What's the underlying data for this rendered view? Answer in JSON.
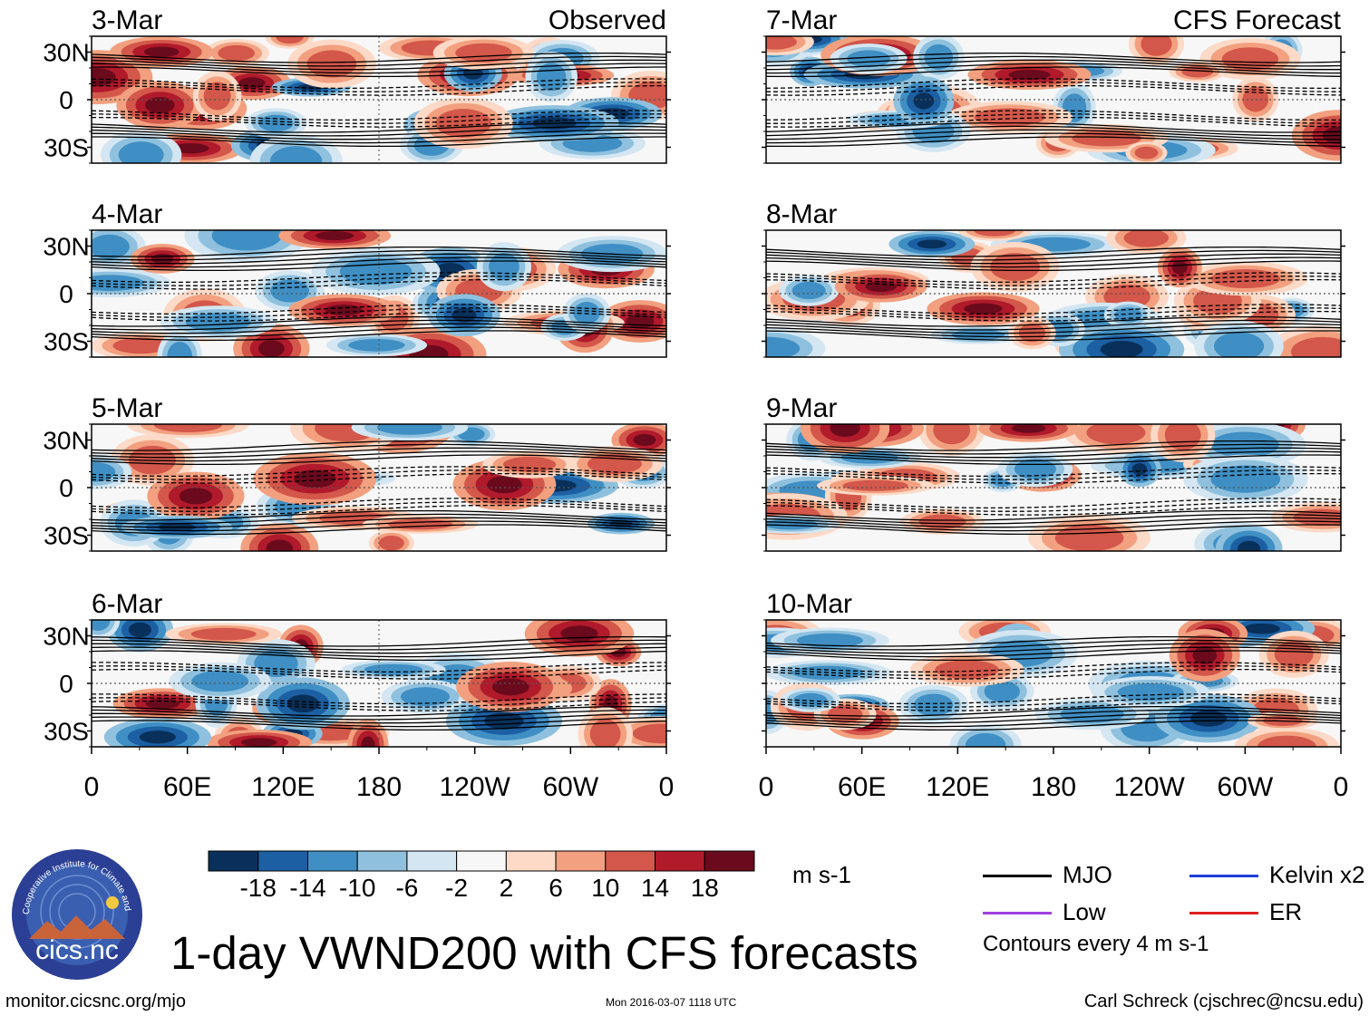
{
  "chart_data": {
    "type": "heatmap",
    "variable": "VWND200",
    "panel_grid": {
      "columns": 2,
      "rows": 4
    },
    "panels": [
      {
        "date": "3-Mar",
        "label": "Observed",
        "column": "left"
      },
      {
        "date": "4-Mar",
        "label": "",
        "column": "left"
      },
      {
        "date": "5-Mar",
        "label": "",
        "column": "left"
      },
      {
        "date": "6-Mar",
        "label": "",
        "column": "left"
      },
      {
        "date": "7-Mar",
        "label": "CFS Forecast",
        "column": "right"
      },
      {
        "date": "8-Mar",
        "label": "",
        "column": "right"
      },
      {
        "date": "9-Mar",
        "label": "",
        "column": "right"
      },
      {
        "date": "10-Mar",
        "label": "",
        "column": "right"
      }
    ],
    "x_ticks": [
      "0",
      "60E",
      "120E",
      "180",
      "120W",
      "60W",
      "0"
    ],
    "x_range_deg": [
      0,
      360
    ],
    "y_ticks": [
      "30N",
      "0",
      "30S"
    ],
    "y_range_deg": [
      -40,
      40
    ],
    "colorbar": {
      "labels": [
        "-18",
        "-14",
        "-10",
        "-6",
        "-2",
        "2",
        "6",
        "10",
        "14",
        "18"
      ],
      "colors": [
        "#08305a",
        "#1c5fa3",
        "#3f8fc4",
        "#8fc1de",
        "#d3e6f2",
        "#f7f7f7",
        "#fcdac7",
        "#f2a07f",
        "#d3574a",
        "#b01a2b",
        "#6b0a1c"
      ],
      "units": "m s-1"
    },
    "legend": [
      {
        "name": "MJO",
        "color": "#000000"
      },
      {
        "name": "Kelvin x2",
        "color": "#2040d8"
      },
      {
        "name": "Low",
        "color": "#a040e0"
      },
      {
        "name": "ER",
        "color": "#e02020"
      }
    ],
    "contour_note": "Contours every 4 m s-1"
  },
  "title": "1-day VWND200 with CFS forecasts",
  "footer": {
    "left": "monitor.cicsnc.org/mjo",
    "center": "Mon 2016-03-07 1118 UTC",
    "right": "Carl Schreck (cjschrec@ncsu.edu)"
  },
  "logo": {
    "text": "cics.nc",
    "ring_text": "Cooperative Institute for Climate and Satellites",
    "colors": {
      "ring": "#2b3f94",
      "sky": "#3a5fb0",
      "sun": "#f5c842",
      "mountain": "#c8633a"
    }
  }
}
